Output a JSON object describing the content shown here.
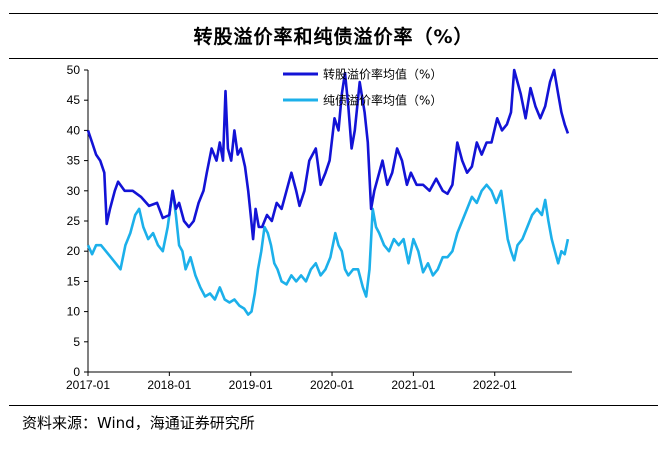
{
  "chart_data": {
    "type": "line",
    "title": "转股溢价率和纯债溢价率（%）",
    "xlabel": "",
    "ylabel": "",
    "ylim": [
      0,
      50
    ],
    "yticks": [
      0,
      5,
      10,
      15,
      20,
      25,
      30,
      35,
      40,
      45,
      50
    ],
    "xlim": [
      2017.0,
      2022.95
    ],
    "xticks": [
      {
        "label": "2017-01",
        "value": 2017.0
      },
      {
        "label": "2018-01",
        "value": 2018.0
      },
      {
        "label": "2019-01",
        "value": 2019.0
      },
      {
        "label": "2020-01",
        "value": 2020.0
      },
      {
        "label": "2021-01",
        "value": 2021.0
      },
      {
        "label": "2022-01",
        "value": 2022.0
      }
    ],
    "legend_position": "top-center",
    "series": [
      {
        "name": "转股溢价率均值（%）",
        "color": "#1313d6",
        "points": [
          [
            2017.0,
            40
          ],
          [
            2017.05,
            38
          ],
          [
            2017.1,
            36
          ],
          [
            2017.15,
            35
          ],
          [
            2017.2,
            33
          ],
          [
            2017.23,
            24.5
          ],
          [
            2017.27,
            27
          ],
          [
            2017.33,
            30
          ],
          [
            2017.37,
            31.5
          ],
          [
            2017.45,
            30
          ],
          [
            2017.55,
            30
          ],
          [
            2017.65,
            29
          ],
          [
            2017.75,
            27.5
          ],
          [
            2017.85,
            28
          ],
          [
            2017.92,
            25.5
          ],
          [
            2018.0,
            26
          ],
          [
            2018.04,
            30
          ],
          [
            2018.08,
            27
          ],
          [
            2018.12,
            28
          ],
          [
            2018.18,
            25
          ],
          [
            2018.24,
            24
          ],
          [
            2018.3,
            25
          ],
          [
            2018.36,
            28
          ],
          [
            2018.42,
            30
          ],
          [
            2018.46,
            33
          ],
          [
            2018.52,
            37
          ],
          [
            2018.58,
            35
          ],
          [
            2018.62,
            38
          ],
          [
            2018.66,
            35
          ],
          [
            2018.69,
            46.5
          ],
          [
            2018.72,
            37
          ],
          [
            2018.76,
            35
          ],
          [
            2018.8,
            40
          ],
          [
            2018.84,
            36
          ],
          [
            2018.88,
            37
          ],
          [
            2018.93,
            34
          ],
          [
            2018.97,
            30
          ],
          [
            2019.0,
            26
          ],
          [
            2019.03,
            22
          ],
          [
            2019.06,
            27
          ],
          [
            2019.1,
            24
          ],
          [
            2019.14,
            24
          ],
          [
            2019.2,
            26
          ],
          [
            2019.26,
            25
          ],
          [
            2019.32,
            28
          ],
          [
            2019.38,
            27
          ],
          [
            2019.44,
            30
          ],
          [
            2019.5,
            33
          ],
          [
            2019.56,
            30
          ],
          [
            2019.6,
            27.5
          ],
          [
            2019.66,
            30
          ],
          [
            2019.72,
            35
          ],
          [
            2019.8,
            37
          ],
          [
            2019.86,
            31
          ],
          [
            2019.92,
            33
          ],
          [
            2019.97,
            35
          ],
          [
            2020.03,
            42
          ],
          [
            2020.08,
            40
          ],
          [
            2020.12,
            46
          ],
          [
            2020.16,
            49.5
          ],
          [
            2020.2,
            44
          ],
          [
            2020.24,
            37
          ],
          [
            2020.28,
            40
          ],
          [
            2020.34,
            48
          ],
          [
            2020.4,
            43
          ],
          [
            2020.44,
            38
          ],
          [
            2020.48,
            27
          ],
          [
            2020.52,
            30
          ],
          [
            2020.56,
            32
          ],
          [
            2020.62,
            35
          ],
          [
            2020.68,
            31
          ],
          [
            2020.74,
            33
          ],
          [
            2020.8,
            37
          ],
          [
            2020.86,
            35
          ],
          [
            2020.92,
            31
          ],
          [
            2020.97,
            33
          ],
          [
            2021.04,
            31
          ],
          [
            2021.12,
            31
          ],
          [
            2021.2,
            30
          ],
          [
            2021.28,
            32
          ],
          [
            2021.36,
            30
          ],
          [
            2021.42,
            29.5
          ],
          [
            2021.48,
            31
          ],
          [
            2021.54,
            38
          ],
          [
            2021.6,
            35
          ],
          [
            2021.66,
            33
          ],
          [
            2021.72,
            34
          ],
          [
            2021.78,
            38
          ],
          [
            2021.84,
            36
          ],
          [
            2021.9,
            38
          ],
          [
            2021.96,
            38
          ],
          [
            2022.03,
            42
          ],
          [
            2022.09,
            40
          ],
          [
            2022.15,
            41
          ],
          [
            2022.2,
            43
          ],
          [
            2022.24,
            50
          ],
          [
            2022.28,
            48
          ],
          [
            2022.32,
            46
          ],
          [
            2022.38,
            42
          ],
          [
            2022.44,
            47
          ],
          [
            2022.5,
            44
          ],
          [
            2022.56,
            42
          ],
          [
            2022.62,
            44
          ],
          [
            2022.68,
            48
          ],
          [
            2022.73,
            50
          ],
          [
            2022.78,
            46
          ],
          [
            2022.82,
            43
          ],
          [
            2022.86,
            41
          ],
          [
            2022.9,
            39.5
          ]
        ]
      },
      {
        "name": "纯债溢价率均值（%）",
        "color": "#1cb0ea",
        "points": [
          [
            2017.0,
            21
          ],
          [
            2017.05,
            19.5
          ],
          [
            2017.1,
            21
          ],
          [
            2017.16,
            21
          ],
          [
            2017.22,
            20
          ],
          [
            2017.28,
            19
          ],
          [
            2017.34,
            18
          ],
          [
            2017.4,
            17
          ],
          [
            2017.46,
            21
          ],
          [
            2017.52,
            23
          ],
          [
            2017.58,
            26
          ],
          [
            2017.63,
            27
          ],
          [
            2017.68,
            24
          ],
          [
            2017.74,
            22
          ],
          [
            2017.8,
            23
          ],
          [
            2017.86,
            21
          ],
          [
            2017.92,
            20
          ],
          [
            2017.98,
            24
          ],
          [
            2018.04,
            30
          ],
          [
            2018.08,
            26
          ],
          [
            2018.12,
            21
          ],
          [
            2018.16,
            20
          ],
          [
            2018.2,
            17
          ],
          [
            2018.26,
            19
          ],
          [
            2018.32,
            16
          ],
          [
            2018.38,
            14
          ],
          [
            2018.44,
            12.5
          ],
          [
            2018.5,
            13
          ],
          [
            2018.56,
            12
          ],
          [
            2018.62,
            14
          ],
          [
            2018.68,
            12
          ],
          [
            2018.74,
            11.5
          ],
          [
            2018.8,
            12
          ],
          [
            2018.86,
            11
          ],
          [
            2018.92,
            10.5
          ],
          [
            2018.97,
            9.5
          ],
          [
            2019.01,
            10
          ],
          [
            2019.05,
            13
          ],
          [
            2019.09,
            17
          ],
          [
            2019.13,
            20
          ],
          [
            2019.17,
            24
          ],
          [
            2019.21,
            23
          ],
          [
            2019.25,
            21
          ],
          [
            2019.29,
            18
          ],
          [
            2019.33,
            17
          ],
          [
            2019.38,
            15
          ],
          [
            2019.44,
            14.5
          ],
          [
            2019.5,
            16
          ],
          [
            2019.56,
            15
          ],
          [
            2019.62,
            16
          ],
          [
            2019.68,
            15
          ],
          [
            2019.74,
            17
          ],
          [
            2019.8,
            18
          ],
          [
            2019.86,
            16
          ],
          [
            2019.92,
            17
          ],
          [
            2019.98,
            19
          ],
          [
            2020.04,
            23
          ],
          [
            2020.08,
            21
          ],
          [
            2020.12,
            20
          ],
          [
            2020.16,
            17
          ],
          [
            2020.2,
            16
          ],
          [
            2020.26,
            17
          ],
          [
            2020.32,
            17
          ],
          [
            2020.38,
            14
          ],
          [
            2020.42,
            12.5
          ],
          [
            2020.46,
            17
          ],
          [
            2020.5,
            27
          ],
          [
            2020.54,
            24
          ],
          [
            2020.58,
            23
          ],
          [
            2020.64,
            21
          ],
          [
            2020.7,
            20
          ],
          [
            2020.76,
            22
          ],
          [
            2020.82,
            21
          ],
          [
            2020.88,
            22
          ],
          [
            2020.94,
            18
          ],
          [
            2021.0,
            22
          ],
          [
            2021.06,
            20
          ],
          [
            2021.12,
            16.5
          ],
          [
            2021.18,
            18
          ],
          [
            2021.24,
            16
          ],
          [
            2021.3,
            17
          ],
          [
            2021.36,
            19
          ],
          [
            2021.42,
            19
          ],
          [
            2021.48,
            20
          ],
          [
            2021.54,
            23
          ],
          [
            2021.6,
            25
          ],
          [
            2021.66,
            27
          ],
          [
            2021.72,
            29
          ],
          [
            2021.78,
            28
          ],
          [
            2021.84,
            30
          ],
          [
            2021.9,
            31
          ],
          [
            2021.96,
            30
          ],
          [
            2022.02,
            28
          ],
          [
            2022.08,
            30
          ],
          [
            2022.12,
            26
          ],
          [
            2022.16,
            22
          ],
          [
            2022.2,
            20
          ],
          [
            2022.24,
            18.5
          ],
          [
            2022.28,
            21
          ],
          [
            2022.34,
            22
          ],
          [
            2022.4,
            24
          ],
          [
            2022.46,
            26
          ],
          [
            2022.52,
            27
          ],
          [
            2022.58,
            26
          ],
          [
            2022.62,
            28.5
          ],
          [
            2022.66,
            25
          ],
          [
            2022.7,
            22
          ],
          [
            2022.74,
            20
          ],
          [
            2022.78,
            18
          ],
          [
            2022.82,
            20
          ],
          [
            2022.86,
            19.5
          ],
          [
            2022.9,
            22
          ]
        ]
      }
    ]
  },
  "source_text": "资料来源：Wind，海通证券研究所"
}
